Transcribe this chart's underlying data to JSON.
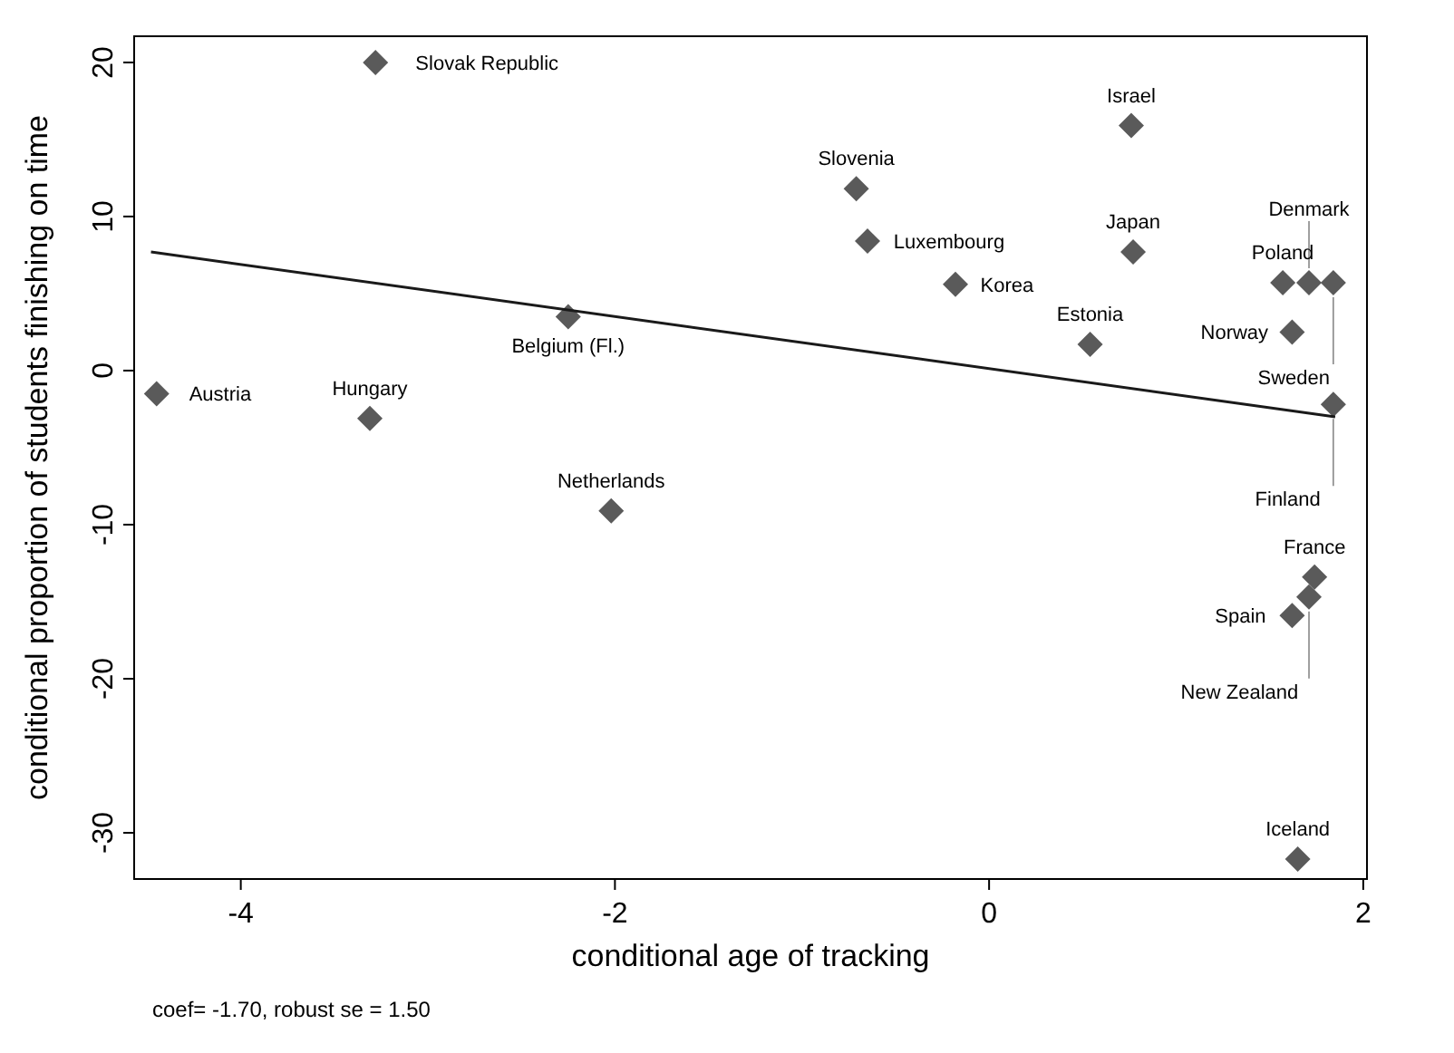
{
  "chart_data": {
    "type": "scatter",
    "xlabel": "conditional age of tracking",
    "ylabel": "conditional proportion of students finishing on time",
    "xlim": [
      -4.57,
      2.02
    ],
    "ylim": [
      -33,
      21.7
    ],
    "xticks": [
      -4,
      -2,
      0,
      2
    ],
    "yticks": [
      -30,
      -20,
      -10,
      0,
      10,
      20
    ],
    "grid": false,
    "marker": "diamond",
    "series": [
      {
        "color": "#5a5a5a",
        "x": [
          -3.28,
          0.76,
          -0.71,
          -0.65,
          -0.18,
          0.77,
          -2.25,
          0.54,
          1.57,
          1.71,
          1.84,
          1.62,
          1.84,
          -4.45,
          -3.31,
          -2.02,
          1.74,
          1.71,
          1.62,
          1.65
        ],
        "values": [
          20.0,
          15.9,
          11.8,
          8.4,
          5.6,
          7.7,
          3.5,
          1.7,
          5.7,
          5.7,
          5.7,
          2.5,
          -2.2,
          -1.5,
          -3.1,
          -9.1,
          -13.4,
          -14.7,
          -15.9,
          -31.7
        ]
      },
      {
        "type": "line",
        "color": "#1a1a1a",
        "marker": "none",
        "x": [
          -4.48,
          1.85
        ],
        "values": [
          7.7,
          -3.0
        ]
      }
    ],
    "annotations": [
      {
        "text": "Slovak Republic",
        "x": -3.28,
        "y": 20.0
      },
      {
        "text": "Israel",
        "x": 0.76,
        "y": 15.9
      },
      {
        "text": "Slovenia",
        "x": -0.71,
        "y": 11.8
      },
      {
        "text": "Luxembourg",
        "x": -0.65,
        "y": 8.4
      },
      {
        "text": "Korea",
        "x": -0.18,
        "y": 5.6
      },
      {
        "text": "Japan",
        "x": 0.77,
        "y": 7.7
      },
      {
        "text": "Belgium (Fl.)",
        "x": -2.25,
        "y": 3.5
      },
      {
        "text": "Estonia",
        "x": 0.54,
        "y": 1.7
      },
      {
        "text": "Poland",
        "x": 1.57,
        "y": 5.7
      },
      {
        "text": "Denmark",
        "x": 1.71,
        "y": 5.7
      },
      {
        "text": "Sweden",
        "x": 1.84,
        "y": 5.7
      },
      {
        "text": "Norway",
        "x": 1.62,
        "y": 2.5
      },
      {
        "text": "Finland",
        "x": 1.84,
        "y": -2.2
      },
      {
        "text": "Austria",
        "x": -4.45,
        "y": -1.5
      },
      {
        "text": "Hungary",
        "x": -3.31,
        "y": -3.1
      },
      {
        "text": "Netherlands",
        "x": -2.02,
        "y": -9.1
      },
      {
        "text": "France",
        "x": 1.74,
        "y": -13.4
      },
      {
        "text": "New Zealand",
        "x": 1.71,
        "y": -14.7
      },
      {
        "text": "Spain",
        "x": 1.62,
        "y": -15.9
      },
      {
        "text": "Iceland",
        "x": 1.65,
        "y": -31.7
      },
      "coef= -1.70, robust se = 1.50"
    ]
  }
}
